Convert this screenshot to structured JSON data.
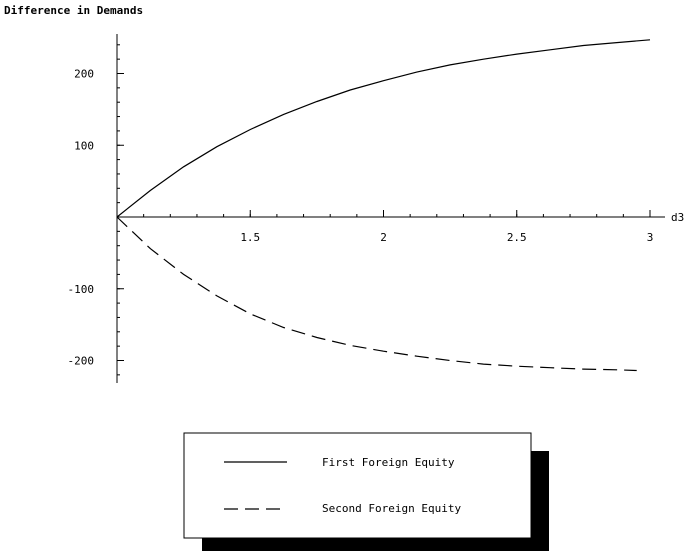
{
  "chart_data": {
    "type": "line",
    "title": "",
    "ylabel": "Difference in Demands",
    "xlabel": "d3",
    "xlim": [
      1.0,
      3.0
    ],
    "ylim": [
      -230,
      255
    ],
    "x_ticks": [
      1.5,
      2,
      2.5,
      3
    ],
    "x_tick_labels": [
      "1.5",
      "2",
      "2.5",
      "3"
    ],
    "y_ticks": [
      200,
      100,
      -100,
      -200
    ],
    "y_tick_labels": [
      "200",
      "100",
      "-100",
      "-200"
    ],
    "grid": false,
    "legend_position": "bottom-center",
    "series": [
      {
        "name": "First Foreign Equity",
        "style": "solid",
        "color": "#000000",
        "x": [
          1.0,
          1.125,
          1.25,
          1.375,
          1.5,
          1.625,
          1.75,
          1.875,
          2.0,
          2.125,
          2.25,
          2.375,
          2.5,
          2.625,
          2.75,
          2.875,
          3.0
        ],
        "y": [
          0,
          37,
          70,
          98,
          122,
          143,
          161,
          177,
          190,
          202,
          212,
          220,
          227,
          233,
          239,
          243,
          247
        ]
      },
      {
        "name": "Second Foreign Equity",
        "style": "dashed",
        "color": "#000000",
        "x": [
          1.0,
          1.125,
          1.25,
          1.375,
          1.5,
          1.625,
          1.75,
          1.875,
          2.0,
          2.125,
          2.25,
          2.375,
          2.5,
          2.625,
          2.75,
          2.875,
          2.95
        ],
        "y": [
          0,
          -44,
          -80,
          -110,
          -135,
          -154,
          -168,
          -179,
          -187,
          -194,
          -200,
          -205,
          -208,
          -210,
          -212,
          -213,
          -214
        ]
      }
    ]
  }
}
